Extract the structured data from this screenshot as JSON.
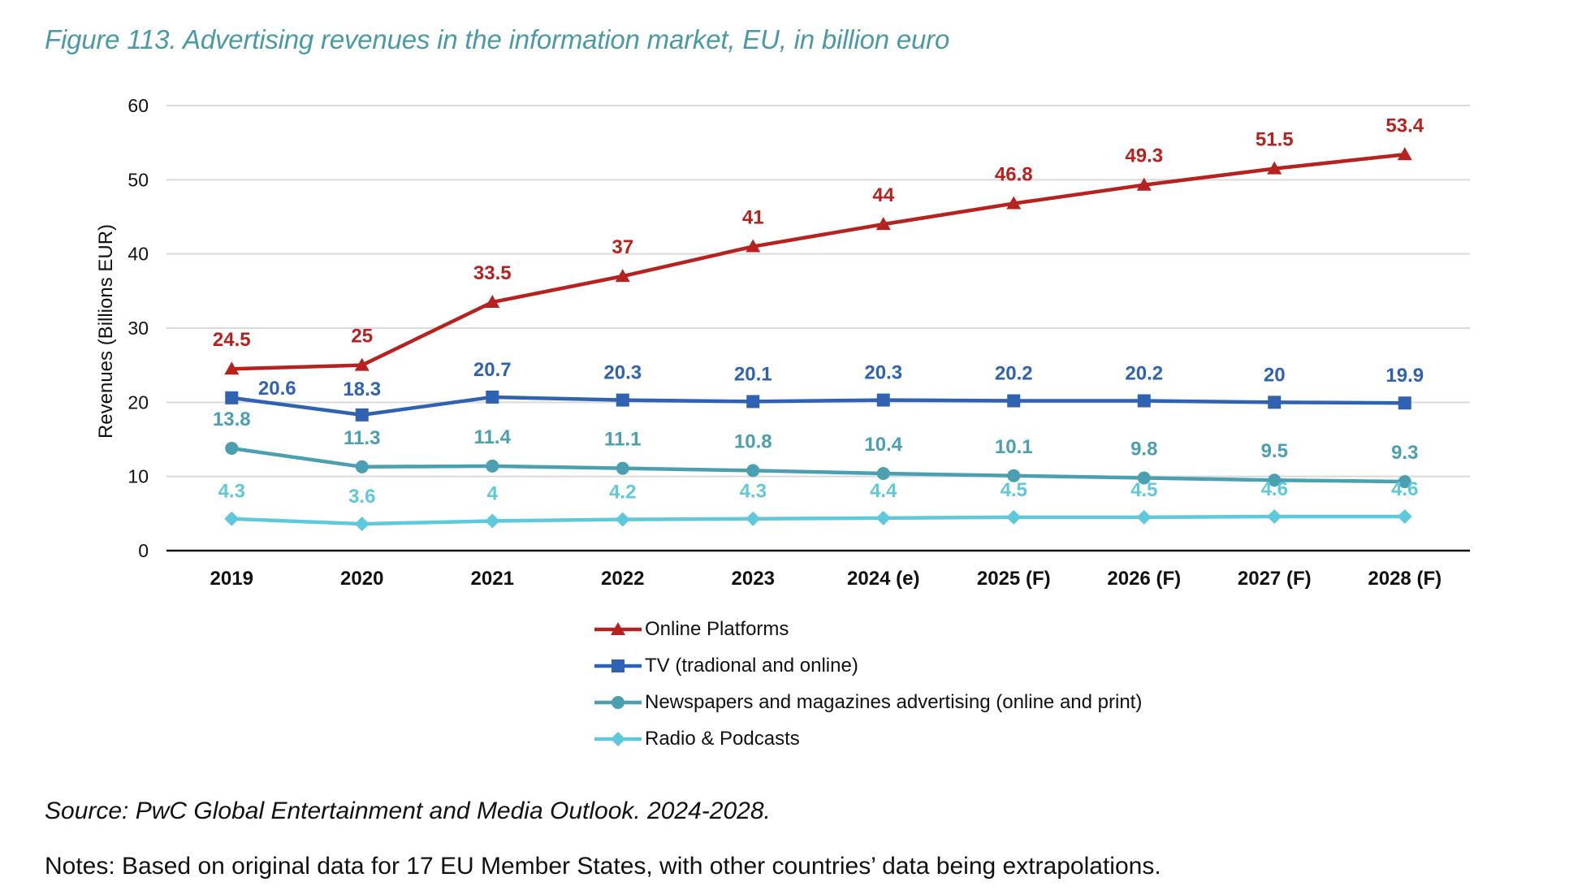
{
  "figure": {
    "title": "Figure 113. Advertising revenues in the information market, EU, in billion euro",
    "source": "Source: PwC Global Entertainment and Media Outlook. 2024-2028.",
    "notes": "Notes: Based on original data for 17 EU Member States, with other countries’ data being extrapolations."
  },
  "chart_data": {
    "type": "line",
    "title": "Advertising revenues in the information market, EU, in billion euro",
    "xlabel": "",
    "ylabel": "Revenues (Billions EUR)",
    "ylim": [
      0,
      60
    ],
    "yticks": [
      0,
      10,
      20,
      30,
      40,
      50,
      60
    ],
    "grid": true,
    "legend_position": "bottom",
    "categories": [
      "2019",
      "2020",
      "2021",
      "2022",
      "2023",
      "2024 (e)",
      "2025 (F)",
      "2026 (F)",
      "2027 (F)",
      "2028 (F)"
    ],
    "series": [
      {
        "name": "Online Platforms",
        "color": "#b8221e",
        "marker": "triangle",
        "values": [
          24.5,
          25,
          33.5,
          37,
          41,
          44,
          46.8,
          49.3,
          51.5,
          53.4
        ],
        "labels": [
          "24.5",
          "25",
          "33.5",
          "37",
          "41",
          "44",
          "46.8",
          "49.3",
          "51.5",
          "53.4"
        ]
      },
      {
        "name": "TV (tradional and online)",
        "color": "#2f62b0",
        "marker": "square",
        "values": [
          20.6,
          18.3,
          20.7,
          20.3,
          20.1,
          20.3,
          20.2,
          20.2,
          20,
          19.9
        ],
        "labels": [
          "20.6",
          "18.3",
          "20.7",
          "20.3",
          "20.1",
          "20.3",
          "20.2",
          "20.2",
          "20",
          "19.9"
        ]
      },
      {
        "name": "Newspapers and magazines advertising (online and print)",
        "color": "#4aa0b0",
        "marker": "circle",
        "values": [
          13.8,
          11.3,
          11.4,
          11.1,
          10.8,
          10.4,
          10.1,
          9.8,
          9.5,
          9.3
        ],
        "labels": [
          "13.8",
          "11.3",
          "11.4",
          "11.1",
          "10.8",
          "10.4",
          "10.1",
          "9.8",
          "9.5",
          "9.3"
        ]
      },
      {
        "name": "Radio & Podcasts",
        "color": "#5ec8dc",
        "marker": "diamond",
        "values": [
          4.3,
          3.6,
          4,
          4.2,
          4.3,
          4.4,
          4.5,
          4.5,
          4.6,
          4.6
        ],
        "labels": [
          "4.3",
          "3.6",
          "4",
          "4.2",
          "4.3",
          "4.4",
          "4.5",
          "4.5",
          "4.6",
          "4.6"
        ]
      }
    ]
  }
}
